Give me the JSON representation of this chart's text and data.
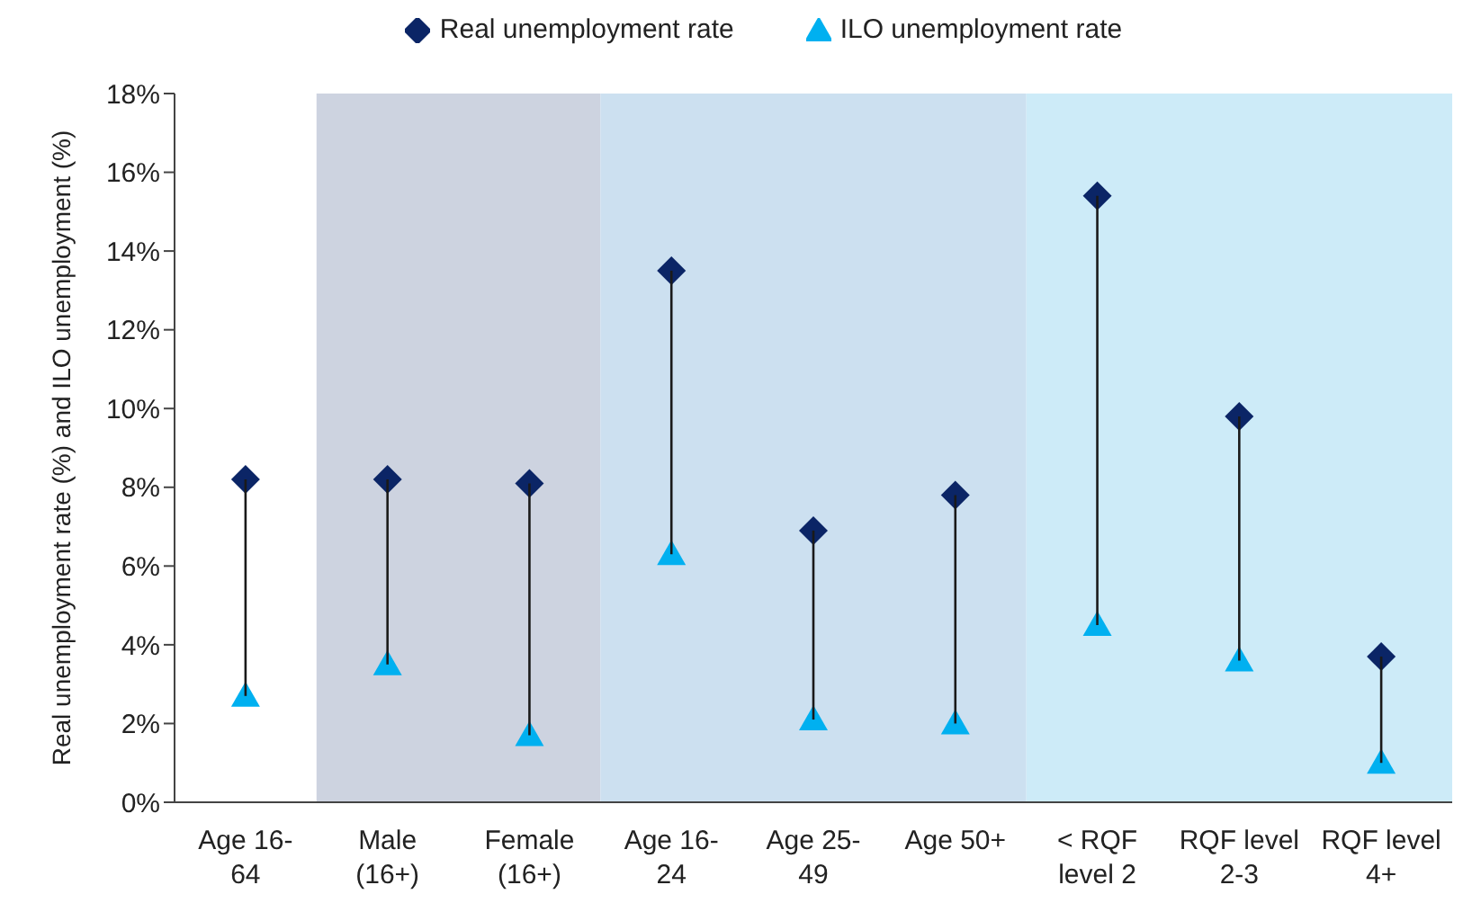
{
  "chart_data": {
    "type": "scatter",
    "ylabel": "Real unemployment rate (%)  and ILO unemployment (%)",
    "categories": [
      "Age 16-\n64",
      "Male\n(16+)",
      "Female\n(16+)",
      "Age 16-\n24",
      "Age 25-\n49",
      "Age 50+",
      "< RQF\nlevel 2",
      "RQF level\n2-3",
      "RQF level\n4+"
    ],
    "series": [
      {
        "name": "Real unemployment rate",
        "color": "#0b2566",
        "marker": "diamond",
        "values": [
          8.2,
          8.2,
          8.1,
          13.5,
          6.9,
          7.8,
          15.4,
          9.8,
          3.7
        ]
      },
      {
        "name": "ILO unemployment rate",
        "color": "#00b0f0",
        "marker": "triangle",
        "values": [
          2.7,
          3.5,
          1.7,
          6.3,
          2.1,
          2.0,
          4.5,
          3.6,
          1.0
        ]
      },
      {
        "type": "line",
        "color": "#1a1a1a",
        "marker": "none",
        "x": [
          "Age 16-\n64",
          "Age 16-\n64"
        ],
        "values": [
          2.7,
          8.2
        ]
      },
      {
        "type": "line",
        "color": "#1a1a1a",
        "marker": "none",
        "x": [
          "Male\n(16+)",
          "Male\n(16+)"
        ],
        "values": [
          3.5,
          8.2
        ]
      },
      {
        "type": "line",
        "color": "#1a1a1a",
        "marker": "none",
        "x": [
          "Female\n(16+)",
          "Female\n(16+)"
        ],
        "values": [
          1.7,
          8.1
        ]
      },
      {
        "type": "line",
        "color": "#1a1a1a",
        "marker": "none",
        "x": [
          "Age 16-\n24",
          "Age 16-\n24"
        ],
        "values": [
          6.3,
          13.5
        ]
      },
      {
        "type": "line",
        "color": "#1a1a1a",
        "marker": "none",
        "x": [
          "Age 25-\n49",
          "Age 25-\n49"
        ],
        "values": [
          2.1,
          6.9
        ]
      },
      {
        "type": "line",
        "color": "#1a1a1a",
        "marker": "none",
        "x": [
          "Age 50+",
          "Age 50+"
        ],
        "values": [
          2.0,
          7.8
        ]
      },
      {
        "type": "line",
        "color": "#1a1a1a",
        "marker": "none",
        "x": [
          "< RQF\nlevel 2",
          "< RQF\nlevel 2"
        ],
        "values": [
          4.5,
          15.4
        ]
      },
      {
        "type": "line",
        "color": "#1a1a1a",
        "marker": "none",
        "x": [
          "RQF level\n2-3",
          "RQF level\n2-3"
        ],
        "values": [
          3.6,
          9.8
        ]
      },
      {
        "type": "line",
        "color": "#1a1a1a",
        "marker": "none",
        "x": [
          "RQF level\n4+",
          "RQF level\n4+"
        ],
        "values": [
          1.0,
          3.7
        ]
      }
    ],
    "ylim": [
      0,
      18
    ],
    "yticks": [
      {
        "value": 0,
        "label": "0%"
      },
      {
        "value": 2,
        "label": "2%"
      },
      {
        "value": 4,
        "label": "4%"
      },
      {
        "value": 6,
        "label": "6%"
      },
      {
        "value": 8,
        "label": "8%"
      },
      {
        "value": 10,
        "label": "10%"
      },
      {
        "value": 12,
        "label": "12%"
      },
      {
        "value": 14,
        "label": "14%"
      },
      {
        "value": 16,
        "label": "16%"
      },
      {
        "value": 18,
        "label": "18%"
      }
    ],
    "bands": [
      {
        "axis": "x",
        "from": "Male\n(16+)",
        "to": "Female\n(16+)",
        "color": "#cdd3e0"
      },
      {
        "axis": "x",
        "from": "Age 16-\n24",
        "to": "Age 50+",
        "color": "#cce0f0"
      },
      {
        "axis": "x",
        "from": "< RQF\nlevel 2",
        "to": "RQF level\n4+",
        "color": "#cdebf8"
      }
    ],
    "grid": false,
    "legend": "top"
  }
}
